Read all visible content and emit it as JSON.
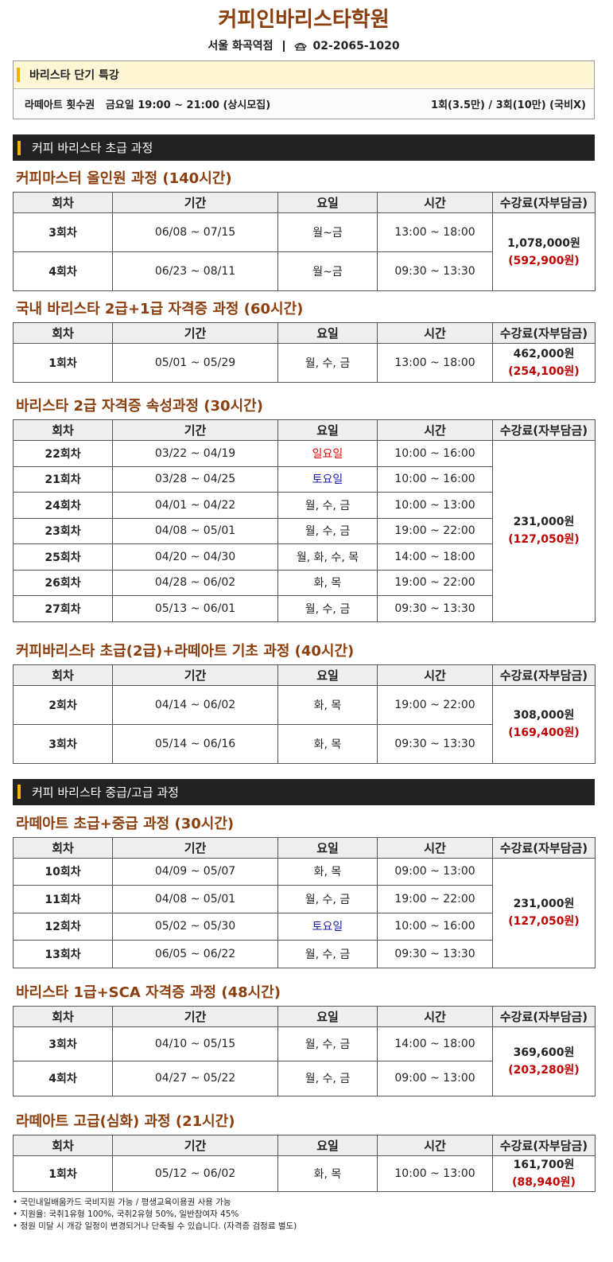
{
  "header": {
    "title": "커피인바리스타학원",
    "location": "서울 화곡역점",
    "phone": "02-2065-1020"
  },
  "special": {
    "title": "바리스타 단기 특강",
    "item": "라떼아트 횟수권   금요일 19:00 ~ 21:00 (상시모집)",
    "price": "1회(3.5만) / 3회(10만) (국비X)"
  },
  "columns": [
    "회차",
    "기간",
    "요일",
    "시간",
    "수강료(자부담금)"
  ],
  "sections": [
    {
      "heading": "커피 바리스타 초급 과정",
      "courses": [
        {
          "title": "커피마스터 올인원 과정 (140시간)",
          "fee": "1,078,000원",
          "subsidy": "(592,900원)",
          "rows": [
            [
              "3회차",
              "06/08 ~ 07/15",
              "월~금",
              "13:00 ~ 18:00"
            ],
            [
              "4회차",
              "06/23 ~ 08/11",
              "월~금",
              "09:30 ~ 13:30"
            ]
          ]
        },
        {
          "title": "국내 바리스타 2급+1급 자격증 과정 (60시간)",
          "fee": "462,000원",
          "subsidy": "(254,100원)",
          "rows": [
            [
              "1회차",
              "05/01 ~ 05/29",
              "월, 수, 금",
              "13:00 ~ 18:00"
            ]
          ]
        },
        {
          "title": "바리스타 2급 자격증 속성과정 (30시간)",
          "fee": "231,000원",
          "subsidy": "(127,050원)",
          "rows": [
            [
              "22회차",
              "03/22 ~ 04/19",
              {
                "text": "일요일",
                "color": "#e60000"
              },
              "10:00 ~ 16:00"
            ],
            [
              "21회차",
              "03/28 ~ 04/25",
              {
                "text": "토요일",
                "color": "#1c1ca8"
              },
              "10:00 ~ 16:00"
            ],
            [
              "24회차",
              "04/01 ~ 04/22",
              "월, 수, 금",
              "10:00 ~ 13:00"
            ],
            [
              "23회차",
              "04/08 ~ 05/01",
              "월, 수, 금",
              "19:00 ~ 22:00"
            ],
            [
              "25회차",
              "04/20 ~ 04/30",
              "월, 화, 수, 목",
              "14:00 ~ 18:00"
            ],
            [
              "26회차",
              "04/28 ~ 06/02",
              "화, 목",
              "19:00 ~ 22:00"
            ],
            [
              "27회차",
              "05/13 ~ 06/01",
              "월, 수, 금",
              "09:30 ~ 13:30"
            ]
          ]
        },
        {
          "title": "커피바리스타 초급(2급)+라떼아트 기초 과정 (40시간)",
          "fee": "308,000원",
          "subsidy": "(169,400원)",
          "rows": [
            [
              "2회차",
              "04/14 ~ 06/02",
              "화, 목",
              "19:00 ~ 22:00"
            ],
            [
              "3회차",
              "05/14 ~ 06/16",
              "화, 목",
              "09:30 ~ 13:30"
            ]
          ]
        }
      ]
    },
    {
      "heading": "커피 바리스타 중급/고급 과정",
      "courses": [
        {
          "title": "라떼아트 초급+중급 과정 (30시간)",
          "fee": "231,000원",
          "subsidy": "(127,050원)",
          "rows": [
            [
              "10회차",
              "04/09 ~ 05/07",
              "화, 목",
              "09:00 ~ 13:00"
            ],
            [
              "11회차",
              "04/08 ~ 05/01",
              "월, 수, 금",
              "19:00 ~ 22:00"
            ],
            [
              "12회차",
              "05/02 ~ 05/30",
              {
                "text": "토요일",
                "color": "#1c1ca8"
              },
              "10:00 ~ 16:00"
            ],
            [
              "13회차",
              "06/05 ~ 06/22",
              "월, 수, 금",
              "09:30 ~ 13:30"
            ]
          ]
        },
        {
          "title": "바리스타 1급+SCA 자격증 과정 (48시간)",
          "fee": "369,600원",
          "subsidy": "(203,280원)",
          "rows": [
            [
              "3회차",
              "04/10 ~ 05/15",
              "월, 수, 금",
              "14:00 ~ 18:00"
            ],
            [
              "4회차",
              "04/27 ~ 05/22",
              "월, 수, 금",
              "09:00 ~ 13:00"
            ]
          ]
        },
        {
          "title": "라떼아트 고급(심화) 과정 (21시간)",
          "fee": "161,700원",
          "subsidy": "(88,940원)",
          "rows": [
            [
              "1회차",
              "05/12 ~ 06/02",
              "화, 목",
              "10:00 ~ 13:00"
            ]
          ]
        }
      ]
    }
  ],
  "notes": [
    "• 국민내일배움카드 국비지원 가능 / 평생교육이용권 사용 가능",
    "• 지원율: 국취1유형 100%, 국취2유형 50%, 일반참여자 45%",
    "• 정원 미달 시 개강 일정이 변경되거나 단축될 수 있습니다. (자격증 검정료 별도)"
  ]
}
